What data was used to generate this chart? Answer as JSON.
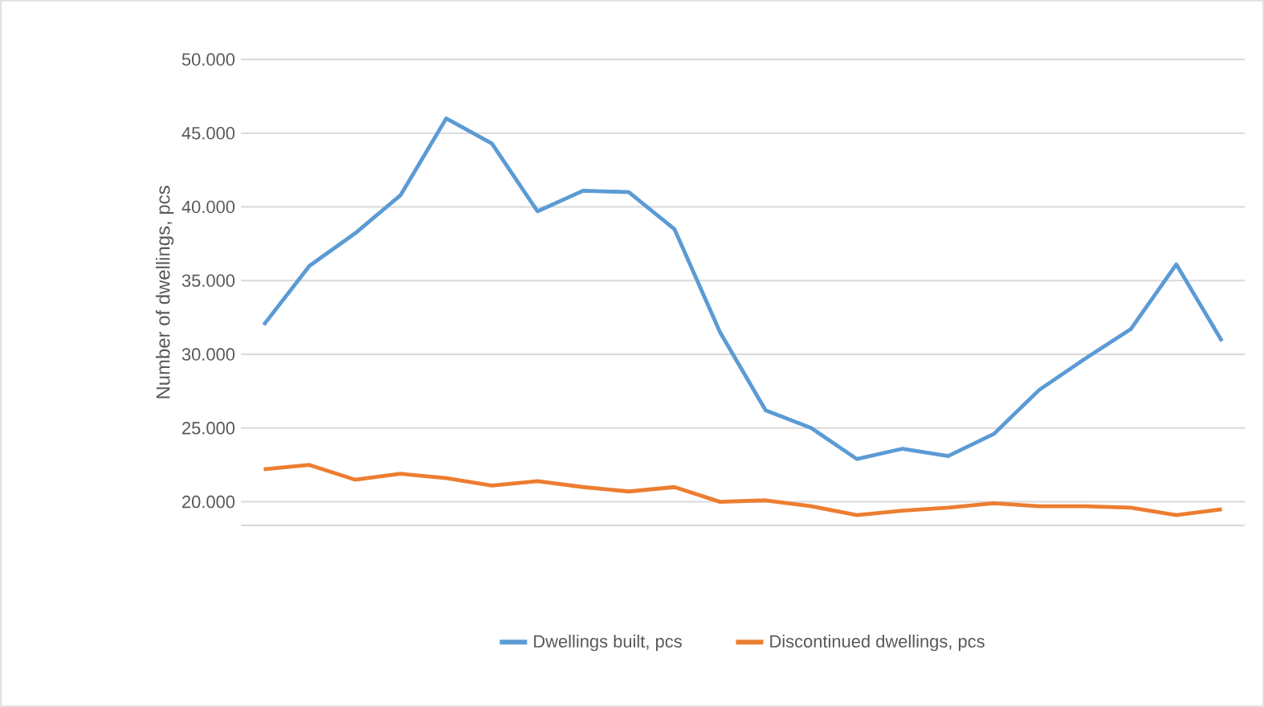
{
  "chart_data": {
    "type": "line",
    "ylabel": "Number of dwellings, pcs",
    "categories": [
      null,
      null,
      null,
      null,
      null,
      null,
      null,
      null,
      null,
      null,
      null,
      null,
      null,
      null,
      null,
      null,
      null,
      null,
      null,
      null,
      null,
      null
    ],
    "series": [
      {
        "name": "Dwellings built, pcs",
        "color": "#5b9bd5",
        "values": [
          32000,
          36000,
          38200,
          40800,
          46000,
          44300,
          39700,
          41100,
          41000,
          38500,
          31500,
          26200,
          25000,
          22900,
          23600,
          23100,
          24600,
          27600,
          29700,
          31700,
          36100,
          30900
        ]
      },
      {
        "name": "Discontinued dwellings, pcs",
        "color": "#ed7d31",
        "values": [
          22200,
          22500,
          21500,
          21900,
          21600,
          21100,
          21400,
          21000,
          20700,
          21000,
          20000,
          20100,
          19700,
          19100,
          19400,
          19600,
          19900,
          19700,
          19700,
          19600,
          19100,
          19500
        ]
      }
    ],
    "ylim": [
      18400,
      50000
    ],
    "yticks": [
      {
        "value": 50000,
        "label": "50.000"
      },
      {
        "value": 45000,
        "label": "45.000"
      },
      {
        "value": 40000,
        "label": "40.000"
      },
      {
        "value": 35000,
        "label": "35.000"
      },
      {
        "value": 30000,
        "label": "30.000"
      },
      {
        "value": 25000,
        "label": "25.000"
      },
      {
        "value": 20000,
        "label": "20.000"
      }
    ],
    "grid": "y",
    "legend": "bottom",
    "marker": "none",
    "line_style": "solid"
  }
}
